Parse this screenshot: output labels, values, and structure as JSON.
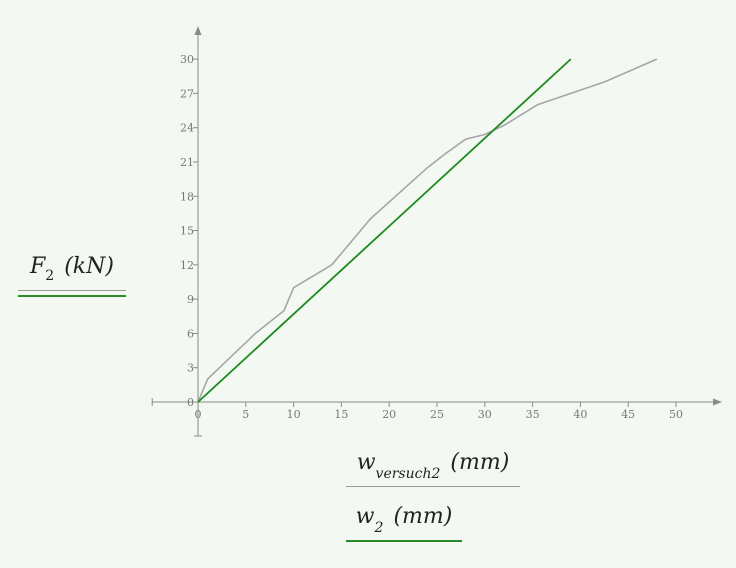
{
  "chart_data": {
    "type": "line",
    "x_ticks": [
      0,
      5,
      10,
      15,
      20,
      25,
      30,
      35,
      40,
      45,
      50
    ],
    "y_ticks": [
      0,
      3,
      6,
      9,
      12,
      15,
      18,
      21,
      24,
      27,
      30
    ],
    "xlim": [
      -5,
      55
    ],
    "ylim": [
      -3,
      33
    ],
    "grid": false,
    "legend": "none",
    "series": [
      {
        "color": "#a6a6a6",
        "x": [
          0,
          1,
          6,
          9,
          10,
          14,
          16,
          18,
          20,
          22,
          24,
          26,
          28,
          30,
          32,
          35.5,
          42.5,
          48
        ],
        "y": [
          0,
          2,
          6,
          8,
          10,
          12,
          14,
          16,
          17.5,
          19,
          20.5,
          21.8,
          23,
          23.4,
          24.2,
          26,
          28,
          30
        ]
      },
      {
        "color": "#1e8a1e",
        "x": [
          0,
          39
        ],
        "y": [
          0,
          30
        ]
      }
    ]
  },
  "ylabel": {
    "var": "F",
    "sub": "2",
    "unit": "(kN)"
  },
  "xlabels": [
    {
      "var": "w",
      "sub": "versuch2",
      "unit": "(mm)"
    },
    {
      "var": "w",
      "sub": "2",
      "unit": "(mm)"
    }
  ]
}
